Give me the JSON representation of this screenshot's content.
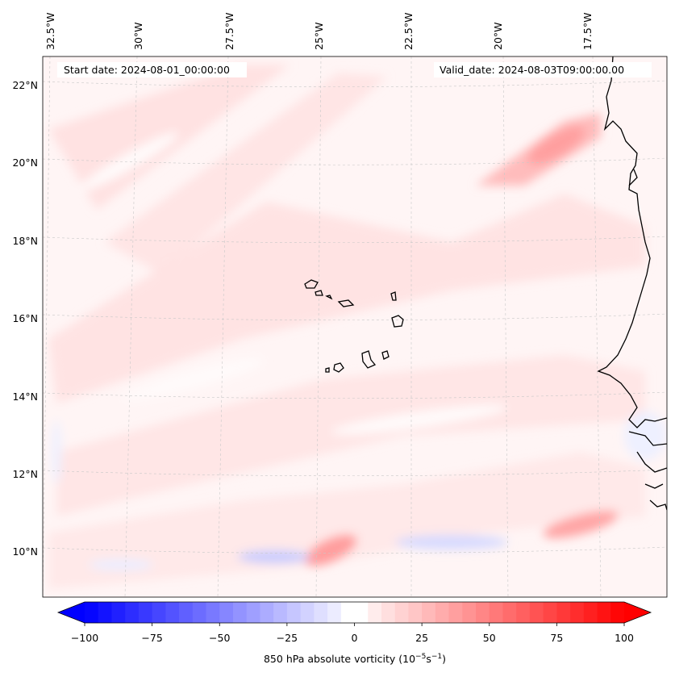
{
  "header": {
    "start_date": "Start date: 2024-08-01_00:00:00",
    "valid_date": "Valid_date: 2024-08-03T09:00:00.00"
  },
  "map": {
    "longitude_labels": [
      "32.5°W",
      "30°W",
      "27.5°W",
      "25°W",
      "22.5°W",
      "20°W",
      "17.5°W"
    ],
    "latitude_labels": [
      "22°N",
      "20°N",
      "18°N",
      "16°N",
      "14°N",
      "12°N",
      "10°N"
    ],
    "colors": {
      "coastline": "#000000",
      "gridline": "#c8c8c8",
      "positive": "#ff0000",
      "negative": "#0000ff",
      "background_tint": "#fff3f3"
    }
  },
  "colorbar": {
    "label_prefix": "850 hPa absolute vorticity (10",
    "label_exp1": "−5",
    "label_mid": "s",
    "label_exp2": "−1",
    "label_suffix": ")",
    "tick_labels": [
      "−100",
      "−75",
      "−50",
      "−25",
      "0",
      "25",
      "50",
      "75",
      "100"
    ],
    "range": [
      -100,
      100
    ],
    "step": 5
  }
}
